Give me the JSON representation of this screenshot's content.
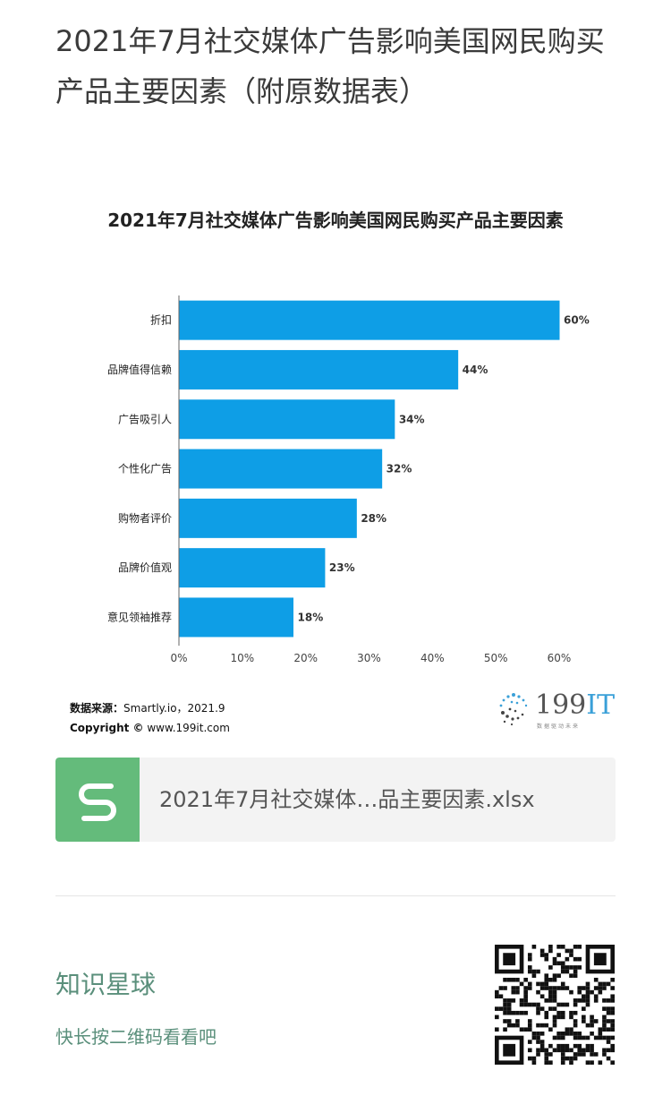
{
  "page": {
    "title": "2021年7月社交媒体广告影响美国网民购买产品主要因素（附原数据表）"
  },
  "chart_data": {
    "type": "bar",
    "orientation": "horizontal",
    "title": "2021年7月社交媒体广告影响美国网民购买产品主要因素",
    "categories": [
      "折扣",
      "品牌值得信赖",
      "广告吸引人",
      "个性化广告",
      "购物者评价",
      "品牌价值观",
      "意见领袖推荐"
    ],
    "values": [
      60,
      44,
      34,
      32,
      28,
      23,
      18
    ],
    "value_labels": [
      "60%",
      "44%",
      "34%",
      "32%",
      "28%",
      "23%",
      "18%"
    ],
    "xlim": [
      0,
      60
    ],
    "x_ticks": [
      "0%",
      "10%",
      "20%",
      "30%",
      "40%",
      "50%",
      "60%"
    ],
    "grid": false,
    "bar_color": "#0e9ee6"
  },
  "source": {
    "label": "数据来源：",
    "text": "Smartly.io，2021.9",
    "copyright_label": "Copyright ©",
    "copyright_text": " www.199it.com"
  },
  "logo": {
    "text_num": "199",
    "text_it": "IT",
    "tagline": "数据驱动未来"
  },
  "file": {
    "icon": "spreadsheet-s-icon",
    "name": "2021年7月社交媒体…品主要因素.xlsx"
  },
  "planet": {
    "title": "知识星球",
    "subtitle": "快长按二维码看看吧"
  }
}
